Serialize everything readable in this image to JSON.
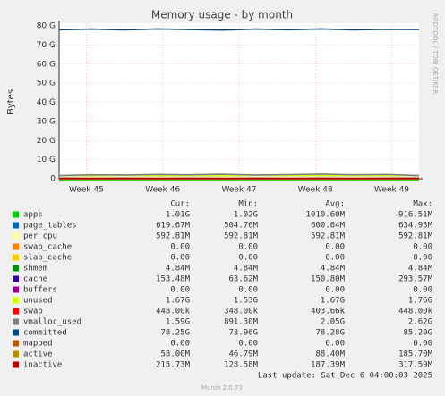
{
  "chart_data": {
    "type": "line",
    "title": "Memory usage - by month",
    "y_label": "Bytes",
    "side_note": "RRDTOOL / TOBI OETIKER",
    "footer": "Last update: Sat Dec  6 04:00:03 2025",
    "version": "Munin 2.0.73",
    "stat_headers": [
      "Cur:",
      "Min:",
      "Avg:",
      "Max:"
    ],
    "grid": true,
    "x": [
      0,
      3,
      6,
      9,
      12,
      15,
      18,
      21,
      24,
      27,
      30,
      33
    ],
    "xlim": [
      0,
      33
    ],
    "xticks": [
      {
        "value": 2.5,
        "label": "Week 45"
      },
      {
        "value": 9.5,
        "label": "Week 46"
      },
      {
        "value": 16.5,
        "label": "Week 47"
      },
      {
        "value": 23.5,
        "label": "Week 48"
      },
      {
        "value": 30.5,
        "label": "Week 49"
      }
    ],
    "ylim": [
      0,
      80
    ],
    "yticks": [
      0,
      {
        "value": 10,
        "label": "10 G"
      },
      {
        "value": 20,
        "label": "20 G"
      },
      {
        "value": 30,
        "label": "30 G"
      },
      {
        "value": 40,
        "label": "40 G"
      },
      {
        "value": 50,
        "label": "50 G"
      },
      {
        "value": 60,
        "label": "60 G"
      },
      {
        "value": 70,
        "label": "70 G"
      },
      {
        "value": 80,
        "label": "80 G"
      }
    ],
    "series": [
      {
        "name": "apps",
        "color": "#00cc00",
        "values": [
          -1.0,
          -1.0,
          -1.0,
          -1.0,
          -1.0,
          -1.0,
          -1.0,
          -1.0,
          -1.0,
          -1.0,
          -1.0,
          -1.0
        ],
        "stats": [
          "-1.01G",
          "-1.02G",
          "-1010.60M",
          "-916.51M"
        ]
      },
      {
        "name": "page_tables",
        "color": "#0066b3",
        "values": [
          0.6,
          0.6,
          0.6,
          0.6,
          0.6,
          0.6,
          0.6,
          0.6,
          0.6,
          0.6,
          0.6,
          0.6
        ],
        "stats": [
          "619.67M",
          "504.76M",
          "600.64M",
          "634.93M"
        ]
      },
      {
        "name": "per_cpu",
        "color": "#ffffa0",
        "values": [
          0.6,
          0.6,
          0.6,
          0.6,
          0.6,
          0.6,
          0.6,
          0.6,
          0.6,
          0.6,
          0.6,
          0.6
        ],
        "stats": [
          "592.81M",
          "592.81M",
          "592.81M",
          "592.81M"
        ]
      },
      {
        "name": "swap_cache",
        "color": "#ff8000",
        "values": [
          0,
          0,
          0,
          0,
          0,
          0,
          0,
          0,
          0,
          0,
          0,
          0
        ],
        "stats": [
          "0.00",
          "0.00",
          "0.00",
          "0.00"
        ]
      },
      {
        "name": "slab_cache",
        "color": "#ffcc00",
        "values": [
          0,
          0,
          0,
          0,
          0,
          0,
          0,
          0,
          0,
          0,
          0,
          0
        ],
        "stats": [
          "0.00",
          "0.00",
          "0.00",
          "0.00"
        ]
      },
      {
        "name": "shmem",
        "color": "#008f00",
        "values": [
          0,
          0,
          0,
          0,
          0,
          0,
          0,
          0,
          0,
          0,
          0,
          0
        ],
        "stats": [
          "4.84M",
          "4.84M",
          "4.84M",
          "4.84M"
        ]
      },
      {
        "name": "cache",
        "color": "#330099",
        "values": [
          0.2,
          0.1,
          0.2,
          0.1,
          0.2,
          0.1,
          0.2,
          0.1,
          0.2,
          0.1,
          0.2,
          0.2
        ],
        "stats": [
          "153.48M",
          "63.62M",
          "150.80M",
          "293.57M"
        ]
      },
      {
        "name": "buffers",
        "color": "#990099",
        "values": [
          0,
          0,
          0,
          0,
          0,
          0,
          0,
          0,
          0,
          0,
          0,
          0
        ],
        "stats": [
          "0.00",
          "0.00",
          "0.00",
          "0.00"
        ]
      },
      {
        "name": "unused",
        "color": "#ccff00",
        "values": [
          1.7,
          1.6,
          1.8,
          1.6,
          1.7,
          1.6,
          1.8,
          1.7,
          1.6,
          1.7,
          1.7,
          1.7
        ],
        "stats": [
          "1.67G",
          "1.53G",
          "1.67G",
          "1.76G"
        ]
      },
      {
        "name": "swap",
        "color": "#ff0000",
        "values": [
          0,
          0,
          0,
          0,
          0,
          0,
          0,
          0,
          0,
          0,
          0,
          0
        ],
        "stats": [
          "448.00k",
          "348.00k",
          "403.66k",
          "448.00k"
        ]
      },
      {
        "name": "vmalloc_used",
        "color": "#808080",
        "values": [
          1.6,
          2.0,
          1.9,
          2.2,
          2.0,
          2.3,
          1.9,
          2.1,
          2.4,
          2.0,
          2.2,
          1.6
        ],
        "stats": [
          "1.59G",
          "891.30M",
          "2.05G",
          "2.62G"
        ]
      },
      {
        "name": "committed",
        "color": "#00487d",
        "values": [
          78.0,
          78.3,
          77.9,
          78.4,
          78.1,
          77.8,
          78.3,
          78.0,
          78.4,
          77.9,
          78.2,
          78.1
        ],
        "stats": [
          "78.25G",
          "73.96G",
          "78.28G",
          "85.20G"
        ]
      },
      {
        "name": "mapped",
        "color": "#b35a00",
        "values": [
          0,
          0,
          0,
          0,
          0,
          0,
          0,
          0,
          0,
          0,
          0,
          0
        ],
        "stats": [
          "0.00",
          "0.00",
          "0.00",
          "0.00"
        ]
      },
      {
        "name": "active",
        "color": "#b38f00",
        "values": [
          0.1,
          0.1,
          0.1,
          0.1,
          0.1,
          0.1,
          0.1,
          0.1,
          0.1,
          0.1,
          0.1,
          0.1
        ],
        "stats": [
          "58.00M",
          "46.79M",
          "88.40M",
          "185.70M"
        ]
      },
      {
        "name": "inactive",
        "color": "#b30000",
        "values": [
          0.2,
          0.2,
          0.2,
          0.2,
          0.2,
          0.2,
          0.2,
          0.2,
          0.2,
          0.2,
          0.2,
          0.2
        ],
        "stats": [
          "215.73M",
          "128.58M",
          "187.39M",
          "317.59M"
        ]
      }
    ]
  }
}
